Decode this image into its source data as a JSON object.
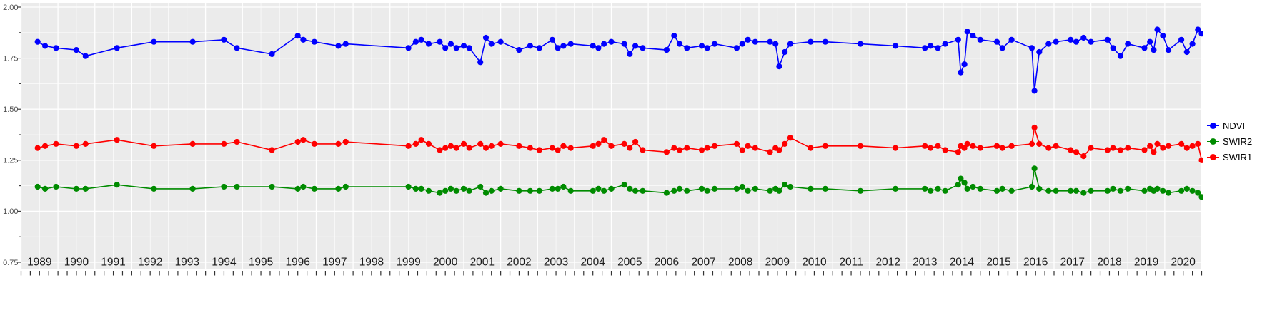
{
  "figure": {
    "background": "#FFFFFF",
    "panel_background": "#EBEBEB",
    "gridline_color": "#FFFFFF",
    "axis_text_color": "#4D4D4D",
    "year_label_color": "#1A1A1A",
    "tick_color": "#333333"
  },
  "chart_data": {
    "type": "line",
    "title": "",
    "xlabel": "",
    "ylabel": "",
    "grid": "on",
    "legend_position": "right",
    "xlim": [
      1988.5,
      2020.5
    ],
    "ylim": [
      0.75,
      2.0
    ],
    "x_ticks": [
      1989,
      1990,
      1991,
      1992,
      1993,
      1994,
      1995,
      1996,
      1997,
      1998,
      1999,
      2000,
      2001,
      2002,
      2003,
      2004,
      2005,
      2006,
      2007,
      2008,
      2009,
      2010,
      2011,
      2012,
      2013,
      2014,
      2015,
      2016,
      2017,
      2018,
      2019,
      2020
    ],
    "y_tick_labels": [
      "2.00",
      "1.75",
      "1.50",
      "1.25",
      "1.00",
      "0.75"
    ],
    "y_tick_values": [
      2.0,
      1.75,
      1.5,
      1.25,
      1.0,
      0.75
    ],
    "x": [
      1988.95,
      1989.15,
      1989.45,
      1990.0,
      1990.25,
      1991.1,
      1992.1,
      1993.15,
      1994.0,
      1994.35,
      1995.3,
      1996.0,
      1996.15,
      1996.45,
      1997.1,
      1997.3,
      1999.0,
      1999.2,
      1999.35,
      1999.55,
      1999.85,
      2000.0,
      2000.15,
      2000.3,
      2000.5,
      2000.65,
      2000.95,
      2001.1,
      2001.25,
      2001.5,
      2002.0,
      2002.3,
      2002.55,
      2002.9,
      2003.05,
      2003.2,
      2003.4,
      2004.0,
      2004.15,
      2004.3,
      2004.5,
      2004.85,
      2005.0,
      2005.15,
      2005.35,
      2006.0,
      2006.2,
      2006.35,
      2006.55,
      2006.95,
      2007.1,
      2007.3,
      2007.9,
      2008.05,
      2008.2,
      2008.4,
      2008.8,
      2008.95,
      2009.05,
      2009.2,
      2009.35,
      2009.9,
      2010.3,
      2011.25,
      2012.2,
      2013.0,
      2013.15,
      2013.35,
      2013.55,
      2013.9,
      2013.97,
      2014.07,
      2014.15,
      2014.3,
      2014.5,
      2014.95,
      2015.1,
      2015.35,
      2015.9,
      2015.97,
      2016.1,
      2016.35,
      2016.55,
      2016.95,
      2017.1,
      2017.3,
      2017.5,
      2017.95,
      2018.1,
      2018.3,
      2018.5,
      2018.95,
      2019.1,
      2019.2,
      2019.3,
      2019.45,
      2019.6,
      2019.95,
      2020.1,
      2020.25,
      2020.4,
      2020.5
    ],
    "series": [
      {
        "name": "NDVI",
        "color": "#0000FF",
        "values": [
          1.83,
          1.81,
          1.8,
          1.79,
          1.76,
          1.8,
          1.83,
          1.83,
          1.84,
          1.8,
          1.77,
          1.86,
          1.84,
          1.83,
          1.81,
          1.82,
          1.8,
          1.83,
          1.84,
          1.82,
          1.83,
          1.8,
          1.82,
          1.8,
          1.81,
          1.8,
          1.73,
          1.85,
          1.82,
          1.83,
          1.79,
          1.81,
          1.8,
          1.84,
          1.8,
          1.81,
          1.82,
          1.81,
          1.8,
          1.82,
          1.83,
          1.82,
          1.77,
          1.81,
          1.8,
          1.79,
          1.86,
          1.82,
          1.8,
          1.81,
          1.8,
          1.82,
          1.8,
          1.82,
          1.84,
          1.83,
          1.83,
          1.82,
          1.71,
          1.78,
          1.82,
          1.83,
          1.83,
          1.82,
          1.81,
          1.8,
          1.81,
          1.8,
          1.82,
          1.84,
          1.68,
          1.72,
          1.88,
          1.86,
          1.84,
          1.83,
          1.8,
          1.84,
          1.8,
          1.59,
          1.78,
          1.82,
          1.83,
          1.84,
          1.83,
          1.85,
          1.83,
          1.84,
          1.8,
          1.76,
          1.82,
          1.8,
          1.83,
          1.79,
          1.89,
          1.86,
          1.79,
          1.84,
          1.78,
          1.82,
          1.89,
          1.87
        ]
      },
      {
        "name": "SWIR2",
        "color": "#008B00",
        "values": [
          1.12,
          1.11,
          1.12,
          1.11,
          1.11,
          1.13,
          1.11,
          1.11,
          1.12,
          1.12,
          1.12,
          1.11,
          1.12,
          1.11,
          1.11,
          1.12,
          1.12,
          1.11,
          1.11,
          1.1,
          1.09,
          1.1,
          1.11,
          1.1,
          1.11,
          1.1,
          1.12,
          1.09,
          1.1,
          1.11,
          1.1,
          1.1,
          1.1,
          1.11,
          1.11,
          1.12,
          1.1,
          1.1,
          1.11,
          1.1,
          1.11,
          1.13,
          1.11,
          1.1,
          1.1,
          1.09,
          1.1,
          1.11,
          1.1,
          1.11,
          1.1,
          1.11,
          1.11,
          1.12,
          1.1,
          1.11,
          1.1,
          1.11,
          1.1,
          1.13,
          1.12,
          1.11,
          1.11,
          1.1,
          1.11,
          1.11,
          1.1,
          1.11,
          1.1,
          1.13,
          1.16,
          1.14,
          1.11,
          1.12,
          1.11,
          1.1,
          1.11,
          1.1,
          1.12,
          1.21,
          1.11,
          1.1,
          1.1,
          1.1,
          1.1,
          1.09,
          1.1,
          1.1,
          1.11,
          1.1,
          1.11,
          1.1,
          1.11,
          1.1,
          1.11,
          1.1,
          1.09,
          1.1,
          1.11,
          1.1,
          1.09,
          1.07
        ]
      },
      {
        "name": "SWIR1",
        "color": "#FF0000",
        "values": [
          1.31,
          1.32,
          1.33,
          1.32,
          1.33,
          1.35,
          1.32,
          1.33,
          1.33,
          1.34,
          1.3,
          1.34,
          1.35,
          1.33,
          1.33,
          1.34,
          1.32,
          1.33,
          1.35,
          1.33,
          1.3,
          1.31,
          1.32,
          1.31,
          1.33,
          1.31,
          1.33,
          1.31,
          1.32,
          1.33,
          1.32,
          1.31,
          1.3,
          1.31,
          1.3,
          1.32,
          1.31,
          1.32,
          1.33,
          1.35,
          1.32,
          1.33,
          1.31,
          1.34,
          1.3,
          1.29,
          1.31,
          1.3,
          1.31,
          1.3,
          1.31,
          1.32,
          1.33,
          1.3,
          1.32,
          1.31,
          1.29,
          1.31,
          1.3,
          1.33,
          1.36,
          1.31,
          1.32,
          1.32,
          1.31,
          1.32,
          1.31,
          1.32,
          1.3,
          1.29,
          1.32,
          1.31,
          1.33,
          1.32,
          1.31,
          1.32,
          1.31,
          1.32,
          1.33,
          1.41,
          1.33,
          1.31,
          1.32,
          1.3,
          1.29,
          1.27,
          1.31,
          1.3,
          1.31,
          1.3,
          1.31,
          1.3,
          1.32,
          1.29,
          1.33,
          1.31,
          1.32,
          1.33,
          1.31,
          1.32,
          1.33,
          1.25
        ]
      }
    ],
    "legend": [
      {
        "label": "NDVI",
        "color": "#0000FF"
      },
      {
        "label": "SWIR2",
        "color": "#008B00"
      },
      {
        "label": "SWIR1",
        "color": "#FF0000"
      }
    ]
  }
}
